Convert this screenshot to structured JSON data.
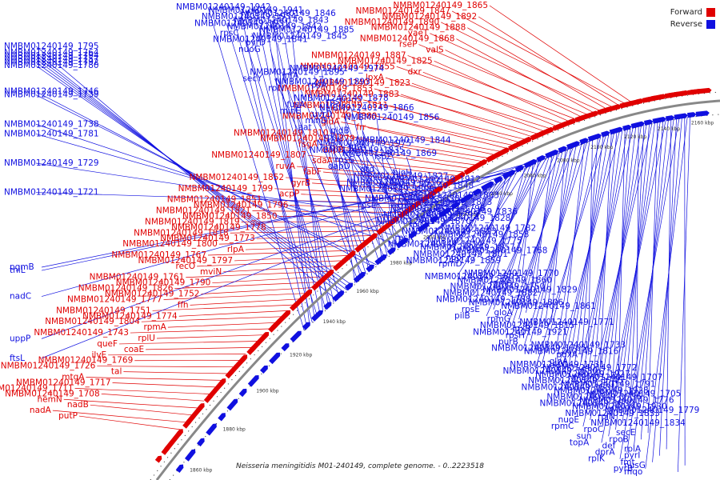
{
  "caption": "Neisseria meningitidis M01-240149, complete genome. - 0..2223518",
  "legend": [
    {
      "label": "Forward",
      "color": "#e00000"
    },
    {
      "label": "Reverse",
      "color": "#1010e0"
    }
  ],
  "colors": {
    "forward": "#e00000",
    "reverse": "#1010e0",
    "backbone": "#888888"
  },
  "ticks": [
    "1860 kbp",
    "1880 kbp",
    "1900 kbp",
    "1920 kbp",
    "1940 kbp",
    "1960 kbp",
    "1980 kbp",
    "2000 kbp",
    "2020 kbp",
    "2040 kbp",
    "2060 kbp",
    "2080 kbp",
    "2100 kbp",
    "2120 kbp",
    "2140 kbp",
    "2160 kbp"
  ],
  "forward_labels": [
    "NMBM01240149_1865",
    "NMBM01240149_1847",
    "NMBM01240149_1892",
    "NMBM01240149_1890",
    "NMBM01240149_1888",
    "yaeT",
    "NMBM01240149_1868",
    "rseP",
    "valS",
    "NMBM01240149_1887",
    "NMBM01240149_1825",
    "NMBM01240149_1855",
    "dxr",
    "lpxA",
    "NMBM01240149_1823",
    "NMBM01240149_1853",
    "NMBM01240149_1883",
    "uppS",
    "NMBM01240149_1811",
    "fabZ",
    "NMBM01240149_1880",
    "gidA",
    "frr",
    "NMBM01240149_1810",
    "NMBM01240149_1879",
    "rsgA",
    "dapB",
    "NMBM01240149_1807",
    "sdaA",
    "ruvA",
    "fabF",
    "NMBM01240149_1852",
    "gyrB",
    "NMBM01240149_1799",
    "acpP",
    "NMBM01240149_1851",
    "NMBM01240149_1796",
    "NMBM01240149_1821",
    "NMBM01240149_1850",
    "NMBM01240149_1819",
    "NMBM01240149_1778",
    "NMBM01240149_1818",
    "NMBM01240149_1773",
    "NMBM01240149_1800",
    "rlpA",
    "NMBM01240149_1767",
    "NMBM01240149_1797",
    "recO",
    "mviN",
    "NMBM01240149_1761",
    "NMBM01240149_1790",
    "NMBM01240149_1826",
    "NMBM01240149_1752",
    "NMBM01240149_1777",
    "ffh",
    "NMBM01240149_1751",
    "NMBM01240149_1774",
    "NMBM01240149_1804",
    "rpmA",
    "NMBM01240149_1743",
    "rplU",
    "queF",
    "coaE",
    "ilvE",
    "NMBM01240149_1769",
    "NMBM01240149_1726",
    "tal",
    "mtgA",
    "NMBM01240149_1717",
    "NMBM01240149_1711",
    "NMBM01240149_1708",
    "hemN",
    "nadB",
    "nadA",
    "putP"
  ],
  "reverse_labels": [
    "NMBM01240149_1942",
    "NMBM01240149_1941",
    "NMBM01240149_1846",
    "NMBM01240149_1934",
    "NMBM01240149_1843",
    "NMBM01240149_1931",
    "NMBM01240149_1842",
    "NMBM01240149_1885",
    "rpsC",
    "NMBM01240149_1845",
    "NMBM01240149_1841",
    "pyrD",
    "NMBM01240149_1795",
    "nuoG",
    "NMBM01240149_1764",
    "NMBM01240149_1794",
    "NMBM01240149_1757",
    "NMBM01240149_1792",
    "NMBM01240149_1780",
    "NMBM01240149_1974",
    "NMBM01240149_1895",
    "infA",
    "secY",
    "NMBM01240149_1893",
    "rpsA",
    "rplV",
    "NMBM01240149_1746",
    "NMBM01240149_1739",
    "NMBM01240149_1878",
    "rpsJ",
    "fusA",
    "NMBM01240149_1866",
    "minE",
    "uvrD",
    "NMBM01240149_1856",
    "minD",
    "NMBM01240149_1738",
    "aat",
    "gidB",
    "NMBM01240149_1781",
    "rpsD",
    "NMBM01240149_1844",
    "NMBM01240149_1975",
    "lptA",
    "NMBM01240149_1835",
    "NMBM01240149_1869",
    "ispZ",
    "rpsG",
    "NMBM01240149_1729",
    "dapD",
    "dtd",
    "bioH",
    "NMBM01240149_1827",
    "NMBM01240149_1912",
    "NMBM01240149_1916",
    "NMBM01240149_1848",
    "NMBM01240149_1808",
    "NMBM01240149_1721",
    "NMBM01240149_1803",
    "NMBM01240149_1838",
    "NMBM01240149_1873",
    "rpsL",
    "NMBM01240149_1798",
    "NMBM01240149_1836",
    "NMBM01240149_1793",
    "NMBM01240149_1828",
    "NMBM01240149_1870",
    "rplO",
    "NMBM01240149_1782",
    "NMBM01240149_1813",
    "NMBM01240149_1858",
    "rpsK",
    "NMBM01240149_1775",
    "NMBM01240149_1814",
    "NMBM01240149_1857",
    "NMBM01240149_1768",
    "NMBM01240149_1801",
    "nuoF",
    "NMBM01240149_1859",
    "rpmD",
    "pgmB",
    "thiL",
    "NMBM01240149_1770",
    "NMBM01240149_1805",
    "NMBM01240149_1860",
    "rpmB",
    "NMBM01240149_1750",
    "NMBM01240149_1829",
    "NMBM01240149_1882",
    "nadC",
    "NMBM01240149_1788",
    "NMBM01240149_1806",
    "NMBM01240149_1861",
    "rpsE",
    "gloA",
    "pilB",
    "rpmG",
    "NMBM01240149_1771",
    "NMBM01240149_1815",
    "lpxB",
    "NMBM01240149_1921",
    "rpsH",
    "uppP",
    "purB",
    "NMBM01240149_1733",
    "NMBM01240149_1765",
    "NMBM01240149_1816",
    "pdxA",
    "ftsL",
    "glnA",
    "NMBM01240149_1731",
    "NMBM01240149_1772",
    "NMBM01240149_1830",
    "NMBM01240149_1927",
    "NMBM01240149_1707",
    "NMBM01240149_1745",
    "NMBM01240149_1791",
    "NMBM01240149_1831",
    "NMBM01240149_1928",
    "NMBM01240149_1705",
    "NMBM01240149_1736",
    "NMBM01240149_1776",
    "NMBM01240149_1832",
    "NMBM01240149_1930",
    "NMBM01240149_1779",
    "NMBM01240149_1833",
    "rplN",
    "nuoE",
    "NMBM01240149_1834",
    "rpmC",
    "rpoC",
    "secE",
    "sun",
    "rpoB",
    "topA",
    "def",
    "rplA",
    "dprA",
    "pyrI",
    "rplK",
    "fmt",
    "nusG",
    "pyrB",
    "mqo"
  ]
}
